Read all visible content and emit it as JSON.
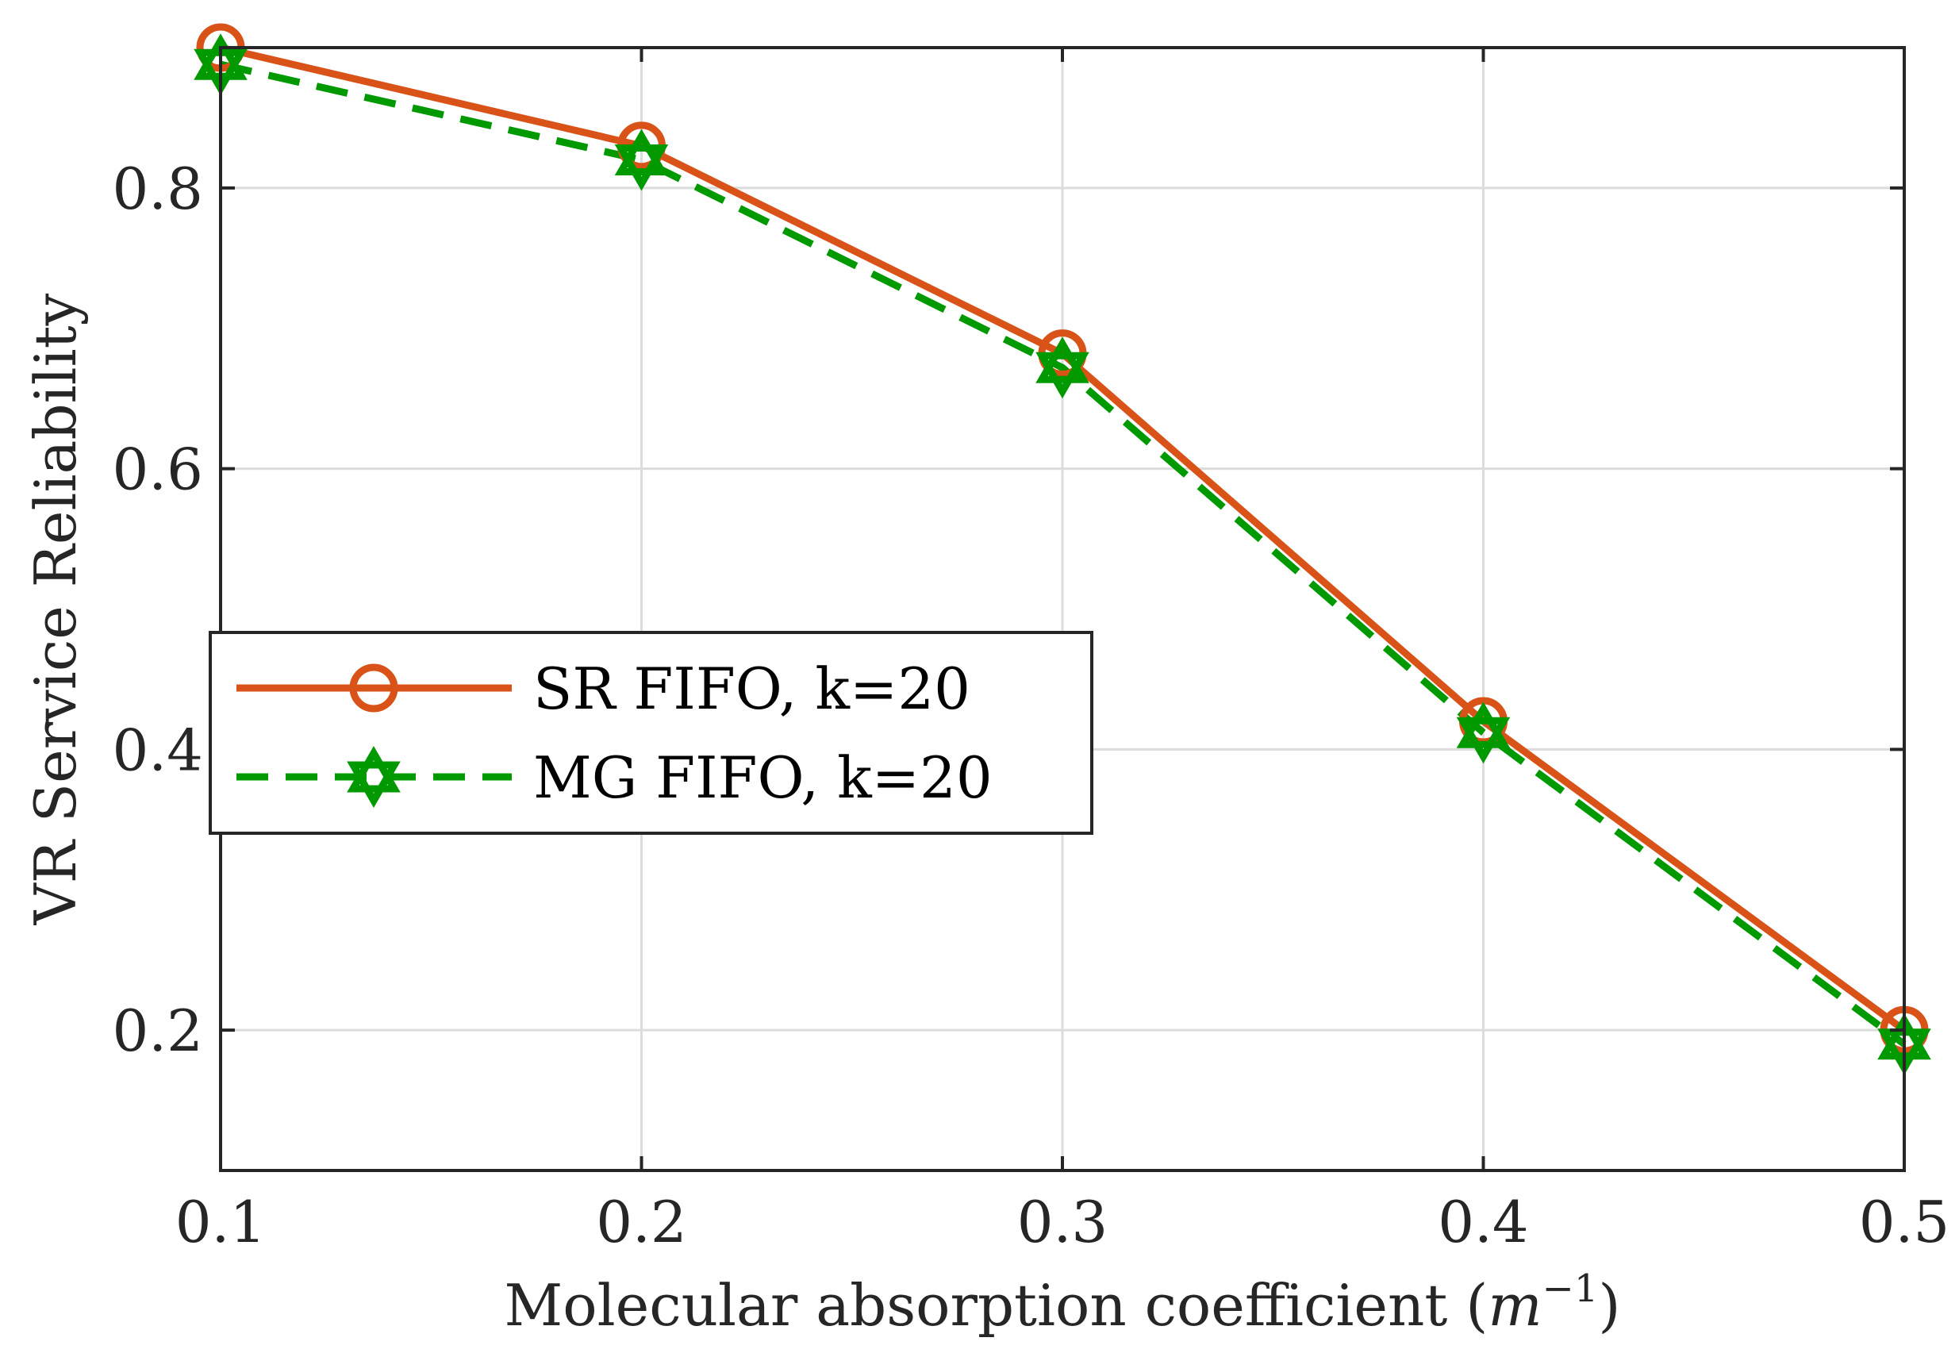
{
  "chart_data": {
    "type": "line",
    "title": "",
    "xlabel": "Molecular absorption coefficient",
    "xlabel_math": "m",
    "xlabel_exp": "−1",
    "ylabel": "VR Service Reliability",
    "x": [
      0.1,
      0.2,
      0.3,
      0.4,
      0.5
    ],
    "xlim": [
      0.1,
      0.5
    ],
    "ylim": [
      0.1,
      0.9
    ],
    "xticks": [
      0.1,
      0.2,
      0.3,
      0.4,
      0.5
    ],
    "xtick_labels": [
      "0.1",
      "0.2",
      "0.3",
      "0.4",
      "0.5"
    ],
    "yticks": [
      0.2,
      0.4,
      0.6,
      0.8
    ],
    "ytick_labels": [
      "0.2",
      "0.4",
      "0.6",
      "0.8"
    ],
    "grid": true,
    "legend_position": "center-left",
    "series": [
      {
        "name": "SR FIFO, k=20",
        "values": [
          0.9,
          0.83,
          0.682,
          0.42,
          0.2
        ],
        "color": "#d95319",
        "line_style": "solid",
        "marker": "circle"
      },
      {
        "name": "MG FIFO, k=20",
        "values": [
          0.888,
          0.82,
          0.672,
          0.412,
          0.19
        ],
        "color": "#009900",
        "line_style": "dashed",
        "marker": "hexagram"
      }
    ]
  }
}
